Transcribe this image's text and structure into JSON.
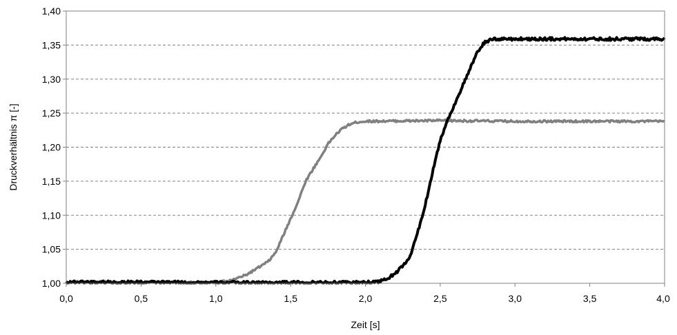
{
  "chart_data": {
    "type": "line",
    "title": "",
    "xlabel": "Zeit [s]",
    "ylabel": "Druckverhältnis  π [-]",
    "xlim": [
      0.0,
      4.0
    ],
    "ylim": [
      1.0,
      1.4
    ],
    "x_ticks": [
      "0,0",
      "0,5",
      "1,0",
      "1,5",
      "2,0",
      "2,5",
      "3,0",
      "3,5",
      "4,0"
    ],
    "y_ticks": [
      "1,00",
      "1,05",
      "1,10",
      "1,15",
      "1,20",
      "1,25",
      "1,30",
      "1,35",
      "1,40"
    ],
    "grid": "horizontal dashed",
    "legend": "none",
    "series": [
      {
        "color": "#808080",
        "points": [
          [
            0.0,
            1.002
          ],
          [
            1.0,
            1.001
          ],
          [
            1.1,
            1.004
          ],
          [
            1.2,
            1.012
          ],
          [
            1.3,
            1.025
          ],
          [
            1.35,
            1.032
          ],
          [
            1.4,
            1.045
          ],
          [
            1.45,
            1.07
          ],
          [
            1.5,
            1.095
          ],
          [
            1.55,
            1.12
          ],
          [
            1.6,
            1.15
          ],
          [
            1.65,
            1.168
          ],
          [
            1.7,
            1.185
          ],
          [
            1.75,
            1.205
          ],
          [
            1.8,
            1.218
          ],
          [
            1.85,
            1.228
          ],
          [
            1.9,
            1.234
          ],
          [
            1.95,
            1.237
          ],
          [
            2.0,
            1.238
          ],
          [
            2.5,
            1.239
          ],
          [
            3.0,
            1.238
          ],
          [
            3.5,
            1.238
          ],
          [
            4.0,
            1.238
          ]
        ]
      },
      {
        "color": "#000000",
        "points": [
          [
            0.0,
            1.002
          ],
          [
            1.0,
            1.001
          ],
          [
            2.0,
            1.001
          ],
          [
            2.1,
            1.003
          ],
          [
            2.15,
            1.007
          ],
          [
            2.2,
            1.015
          ],
          [
            2.25,
            1.025
          ],
          [
            2.3,
            1.04
          ],
          [
            2.35,
            1.075
          ],
          [
            2.4,
            1.115
          ],
          [
            2.45,
            1.165
          ],
          [
            2.5,
            1.21
          ],
          [
            2.55,
            1.24
          ],
          [
            2.6,
            1.265
          ],
          [
            2.65,
            1.29
          ],
          [
            2.7,
            1.315
          ],
          [
            2.75,
            1.34
          ],
          [
            2.8,
            1.355
          ],
          [
            2.85,
            1.358
          ],
          [
            2.9,
            1.359
          ],
          [
            3.0,
            1.359
          ],
          [
            3.5,
            1.359
          ],
          [
            4.0,
            1.359
          ]
        ]
      }
    ]
  }
}
